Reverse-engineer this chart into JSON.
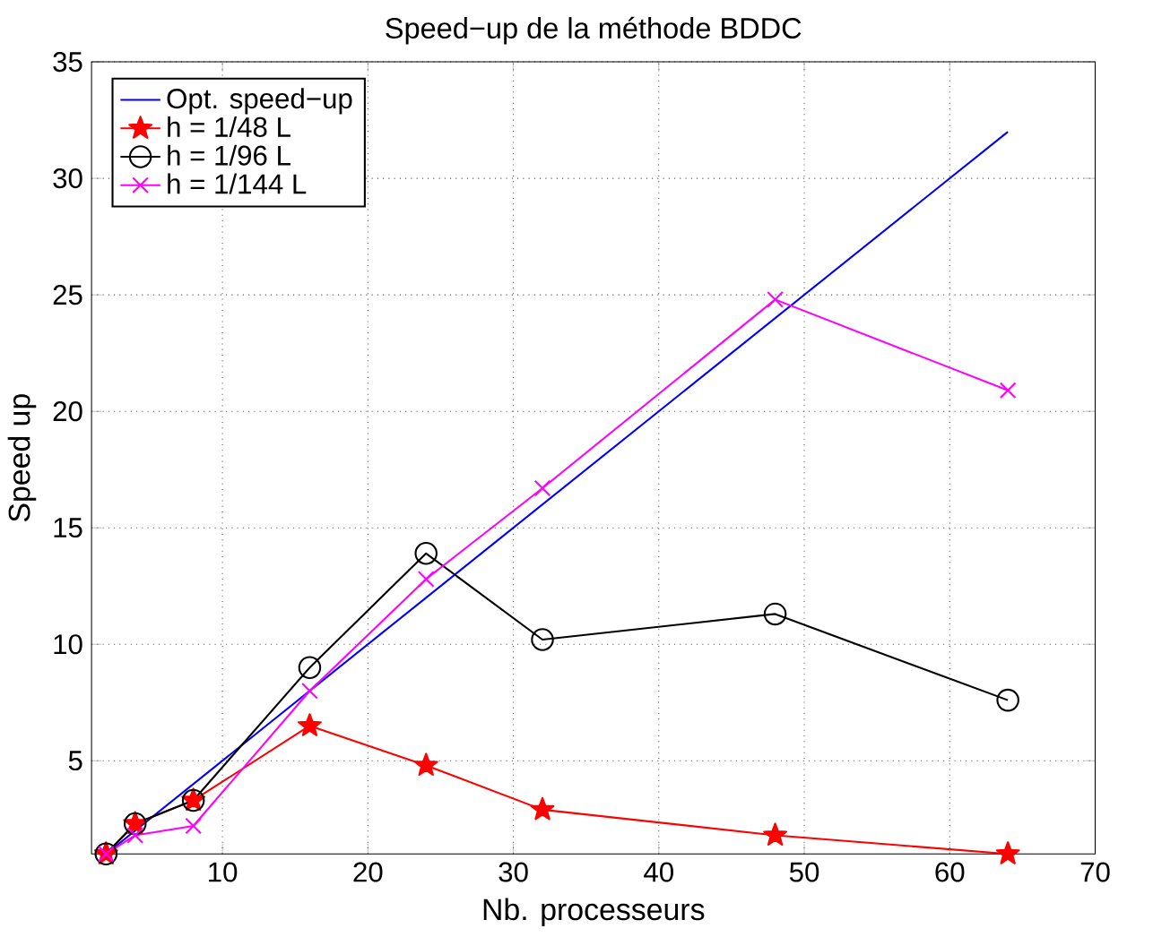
{
  "chart_data": {
    "type": "line",
    "title": "Speed−up de la méthode BDDC",
    "xlabel": "Nb. processeurs",
    "ylabel": "Speed up",
    "xlim": [
      1,
      70
    ],
    "ylim": [
      1,
      35
    ],
    "xticks": [
      10,
      20,
      30,
      40,
      50,
      60,
      70
    ],
    "yticks": [
      5,
      10,
      15,
      20,
      25,
      30,
      35
    ],
    "grid": true,
    "legend": "top left",
    "line_style": "solid",
    "series": [
      {
        "name": "Opt. speed−up",
        "color": "#0000ff",
        "marker": "none",
        "x": [
          2,
          64
        ],
        "values": [
          1,
          32
        ]
      },
      {
        "name": "h = 1/48 L",
        "color": "#ff0000",
        "marker": "star",
        "x": [
          2,
          4,
          8,
          16,
          24,
          32,
          48,
          64
        ],
        "values": [
          1,
          2.3,
          3.3,
          6.5,
          4.8,
          2.9,
          1.8,
          1.0
        ]
      },
      {
        "name": "h = 1/96 L",
        "color": "#000000",
        "marker": "circle",
        "x": [
          2,
          4,
          8,
          16,
          24,
          32,
          48,
          64
        ],
        "values": [
          1,
          2.3,
          3.3,
          9.0,
          13.9,
          10.2,
          11.3,
          7.6
        ]
      },
      {
        "name": "h = 1/144 L",
        "color": "#ff00ff",
        "marker": "cross",
        "x": [
          2,
          4,
          8,
          16,
          24,
          32,
          48,
          64
        ],
        "values": [
          1,
          1.8,
          2.2,
          8.0,
          12.8,
          16.7,
          24.8,
          20.9
        ]
      }
    ]
  }
}
